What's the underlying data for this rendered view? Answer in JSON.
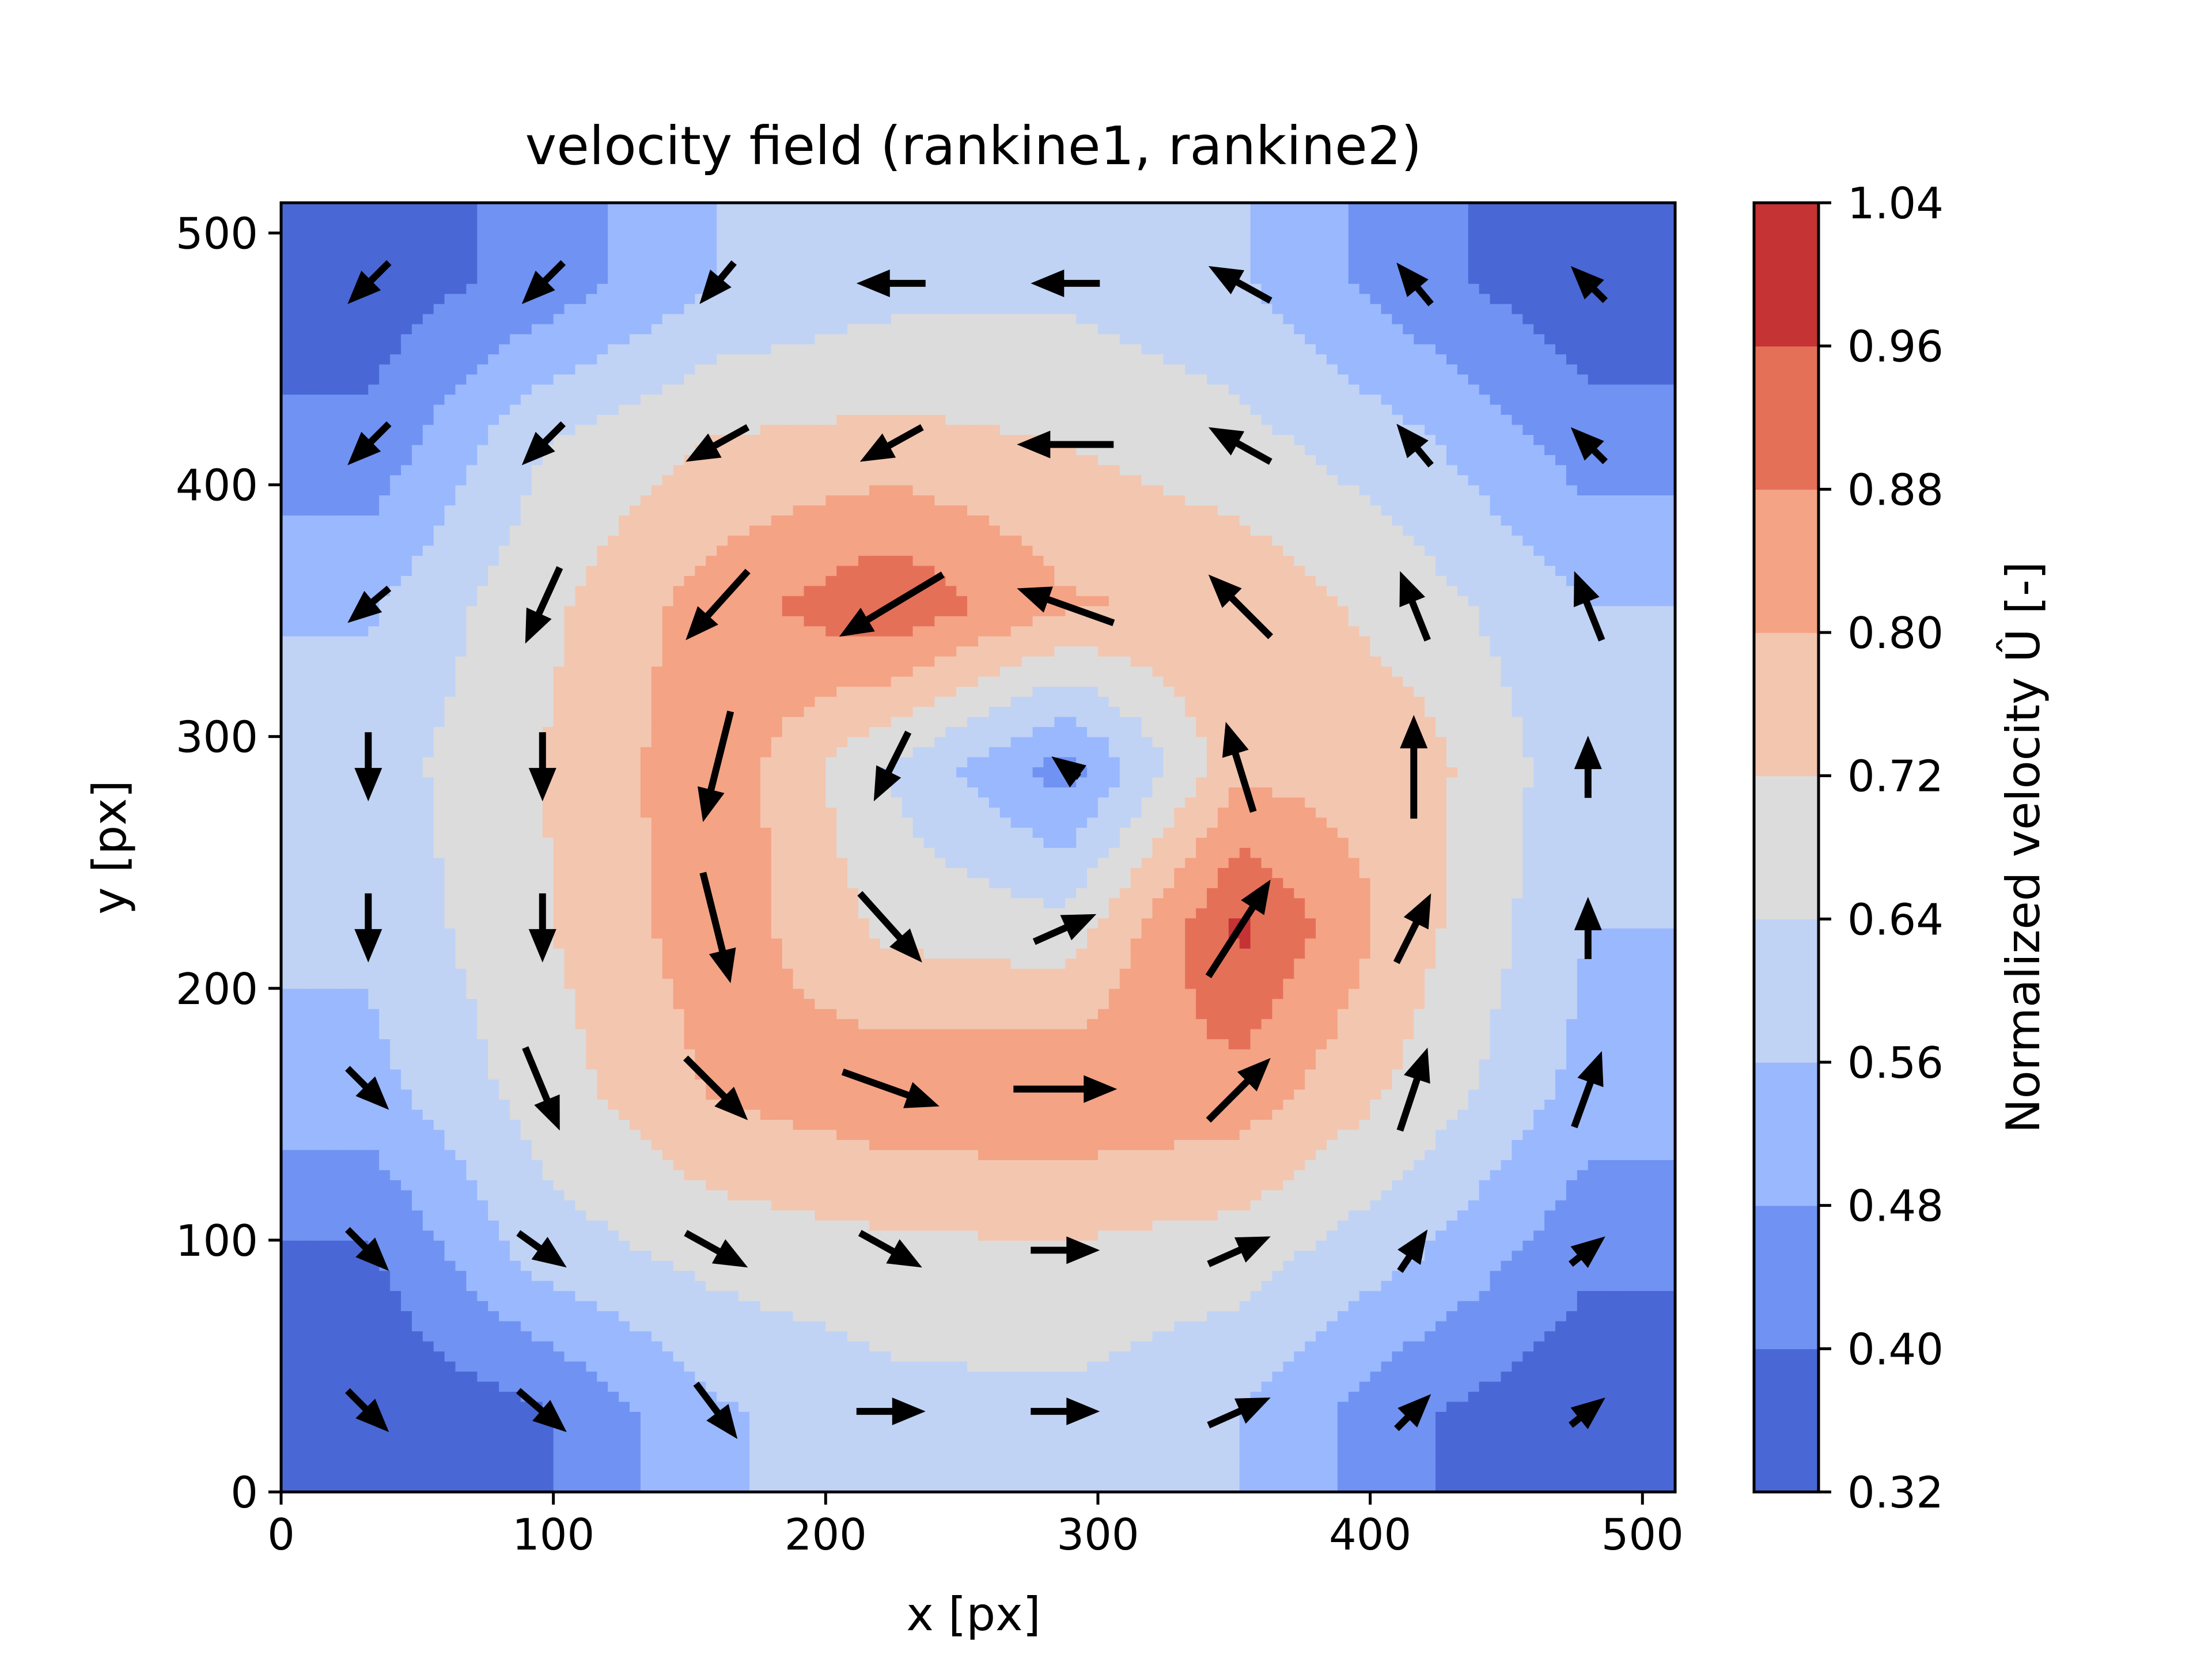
{
  "chart_data": {
    "type": "heatmap",
    "subtype": "filled-contour-with-quiver",
    "title": "velocity field (rankine1, rankine2)",
    "xlabel": "x [px]",
    "ylabel": "y [px]",
    "xlim": [
      0,
      512
    ],
    "ylim": [
      0,
      512
    ],
    "x_ticks": [
      0,
      100,
      200,
      300,
      400,
      500
    ],
    "y_ticks": [
      0,
      100,
      200,
      300,
      400,
      500
    ],
    "x_tick_labels": [
      "0",
      "100",
      "200",
      "300",
      "400",
      "500"
    ],
    "y_tick_labels": [
      "0",
      "100",
      "200",
      "300",
      "400",
      "500"
    ],
    "colormap": "coolwarm",
    "grid_x": [
      32,
      96,
      160,
      224,
      288,
      352,
      416,
      480
    ],
    "grid_y": [
      32,
      96,
      160,
      224,
      288,
      352,
      416,
      480
    ],
    "magnitude": [
      [
        0.33,
        0.39,
        0.55,
        0.61,
        0.62,
        0.56,
        0.41,
        0.33
      ],
      [
        0.39,
        0.6,
        0.67,
        0.7,
        0.71,
        0.68,
        0.57,
        0.42
      ],
      [
        0.53,
        0.68,
        0.81,
        0.86,
        0.87,
        0.85,
        0.7,
        0.53
      ],
      [
        0.58,
        0.71,
        0.85,
        0.7,
        0.67,
        0.98,
        0.75,
        0.56
      ],
      [
        0.6,
        0.72,
        0.86,
        0.63,
        0.44,
        0.78,
        0.76,
        0.58
      ],
      [
        0.55,
        0.7,
        0.84,
        0.95,
        0.81,
        0.78,
        0.68,
        0.56
      ],
      [
        0.42,
        0.64,
        0.73,
        0.75,
        0.72,
        0.67,
        0.58,
        0.44
      ],
      [
        0.35,
        0.43,
        0.56,
        0.61,
        0.62,
        0.57,
        0.43,
        0.34
      ]
    ],
    "quiver": [
      {
        "x": 32,
        "y": 32,
        "u": 0.6,
        "v": -0.6
      },
      {
        "x": 96,
        "y": 32,
        "u": 0.7,
        "v": -0.6
      },
      {
        "x": 160,
        "y": 32,
        "u": 0.6,
        "v": -0.8
      },
      {
        "x": 224,
        "y": 32,
        "u": 1.0,
        "v": 0.0
      },
      {
        "x": 288,
        "y": 32,
        "u": 1.0,
        "v": 0.0
      },
      {
        "x": 352,
        "y": 32,
        "u": 0.9,
        "v": 0.4
      },
      {
        "x": 416,
        "y": 32,
        "u": 0.5,
        "v": 0.5
      },
      {
        "x": 480,
        "y": 32,
        "u": 0.5,
        "v": 0.4
      },
      {
        "x": 32,
        "y": 96,
        "u": 0.6,
        "v": -0.6
      },
      {
        "x": 96,
        "y": 96,
        "u": 0.7,
        "v": -0.5
      },
      {
        "x": 160,
        "y": 96,
        "u": 0.9,
        "v": -0.5
      },
      {
        "x": 224,
        "y": 96,
        "u": 0.9,
        "v": -0.5
      },
      {
        "x": 288,
        "y": 96,
        "u": 1.0,
        "v": 0.0
      },
      {
        "x": 352,
        "y": 96,
        "u": 0.9,
        "v": 0.4
      },
      {
        "x": 416,
        "y": 96,
        "u": 0.4,
        "v": 0.6
      },
      {
        "x": 480,
        "y": 96,
        "u": 0.5,
        "v": 0.4
      },
      {
        "x": 32,
        "y": 160,
        "u": 0.6,
        "v": -0.6
      },
      {
        "x": 96,
        "y": 160,
        "u": 0.5,
        "v": -1.2
      },
      {
        "x": 160,
        "y": 160,
        "u": 0.9,
        "v": -0.9
      },
      {
        "x": 224,
        "y": 160,
        "u": 1.4,
        "v": -0.5
      },
      {
        "x": 288,
        "y": 160,
        "u": 1.5,
        "v": 0.0
      },
      {
        "x": 352,
        "y": 160,
        "u": 0.9,
        "v": 0.9
      },
      {
        "x": 416,
        "y": 160,
        "u": 0.4,
        "v": 1.2
      },
      {
        "x": 480,
        "y": 160,
        "u": 0.4,
        "v": 1.1
      },
      {
        "x": 32,
        "y": 224,
        "u": 0.0,
        "v": -1.0
      },
      {
        "x": 96,
        "y": 224,
        "u": 0.0,
        "v": -1.0
      },
      {
        "x": 160,
        "y": 224,
        "u": 0.4,
        "v": -1.6
      },
      {
        "x": 224,
        "y": 224,
        "u": 0.9,
        "v": -1.0
      },
      {
        "x": 288,
        "y": 224,
        "u": 0.9,
        "v": 0.4
      },
      {
        "x": 352,
        "y": 224,
        "u": 0.9,
        "v": 1.4
      },
      {
        "x": 416,
        "y": 224,
        "u": 0.5,
        "v": 1.0
      },
      {
        "x": 480,
        "y": 224,
        "u": 0.0,
        "v": 0.9
      },
      {
        "x": 32,
        "y": 288,
        "u": 0.0,
        "v": -1.0
      },
      {
        "x": 96,
        "y": 288,
        "u": 0.0,
        "v": -1.0
      },
      {
        "x": 160,
        "y": 288,
        "u": -0.4,
        "v": -1.6
      },
      {
        "x": 224,
        "y": 288,
        "u": -0.5,
        "v": -1.0
      },
      {
        "x": 288,
        "y": 288,
        "u": -0.4,
        "v": 0.3
      },
      {
        "x": 352,
        "y": 288,
        "u": -0.4,
        "v": 1.3
      },
      {
        "x": 416,
        "y": 288,
        "u": 0.0,
        "v": 1.5
      },
      {
        "x": 480,
        "y": 288,
        "u": 0.0,
        "v": 0.9
      },
      {
        "x": 32,
        "y": 352,
        "u": -0.6,
        "v": -0.5
      },
      {
        "x": 96,
        "y": 352,
        "u": -0.5,
        "v": -1.1
      },
      {
        "x": 160,
        "y": 352,
        "u": -0.9,
        "v": -1.0
      },
      {
        "x": 224,
        "y": 352,
        "u": -1.5,
        "v": -0.9
      },
      {
        "x": 288,
        "y": 352,
        "u": -1.4,
        "v": 0.5
      },
      {
        "x": 352,
        "y": 352,
        "u": -0.9,
        "v": 0.9
      },
      {
        "x": 416,
        "y": 352,
        "u": -0.4,
        "v": 1.0
      },
      {
        "x": 480,
        "y": 352,
        "u": -0.4,
        "v": 1.0
      },
      {
        "x": 32,
        "y": 416,
        "u": -0.6,
        "v": -0.6
      },
      {
        "x": 96,
        "y": 416,
        "u": -0.6,
        "v": -0.6
      },
      {
        "x": 160,
        "y": 416,
        "u": -0.9,
        "v": -0.5
      },
      {
        "x": 224,
        "y": 416,
        "u": -0.9,
        "v": -0.5
      },
      {
        "x": 288,
        "y": 416,
        "u": -1.4,
        "v": 0.0
      },
      {
        "x": 352,
        "y": 416,
        "u": -0.9,
        "v": 0.5
      },
      {
        "x": 416,
        "y": 416,
        "u": -0.5,
        "v": 0.6
      },
      {
        "x": 480,
        "y": 416,
        "u": -0.5,
        "v": 0.5
      },
      {
        "x": 32,
        "y": 480,
        "u": -0.6,
        "v": -0.6
      },
      {
        "x": 96,
        "y": 480,
        "u": -0.6,
        "v": -0.6
      },
      {
        "x": 160,
        "y": 480,
        "u": -0.5,
        "v": -0.6
      },
      {
        "x": 224,
        "y": 480,
        "u": -1.0,
        "v": 0.0
      },
      {
        "x": 288,
        "y": 480,
        "u": -1.0,
        "v": 0.0
      },
      {
        "x": 352,
        "y": 480,
        "u": -0.9,
        "v": 0.5
      },
      {
        "x": 416,
        "y": 480,
        "u": -0.5,
        "v": 0.6
      },
      {
        "x": 480,
        "y": 480,
        "u": -0.5,
        "v": 0.5
      }
    ],
    "colorbar": {
      "label": "Normalized velocity Û [-]",
      "levels": [
        0.32,
        0.4,
        0.48,
        0.56,
        0.64,
        0.72,
        0.8,
        0.88,
        0.96,
        1.04
      ],
      "tick_labels": [
        "0.32",
        "0.40",
        "0.48",
        "0.56",
        "0.64",
        "0.72",
        "0.80",
        "0.88",
        "0.96",
        "1.04"
      ],
      "colors": [
        "#4a67d6",
        "#7092f2",
        "#9ab8fe",
        "#c0d3f5",
        "#dddcdc",
        "#f3c6b0",
        "#f4a385",
        "#e57058",
        "#c53334"
      ]
    }
  }
}
